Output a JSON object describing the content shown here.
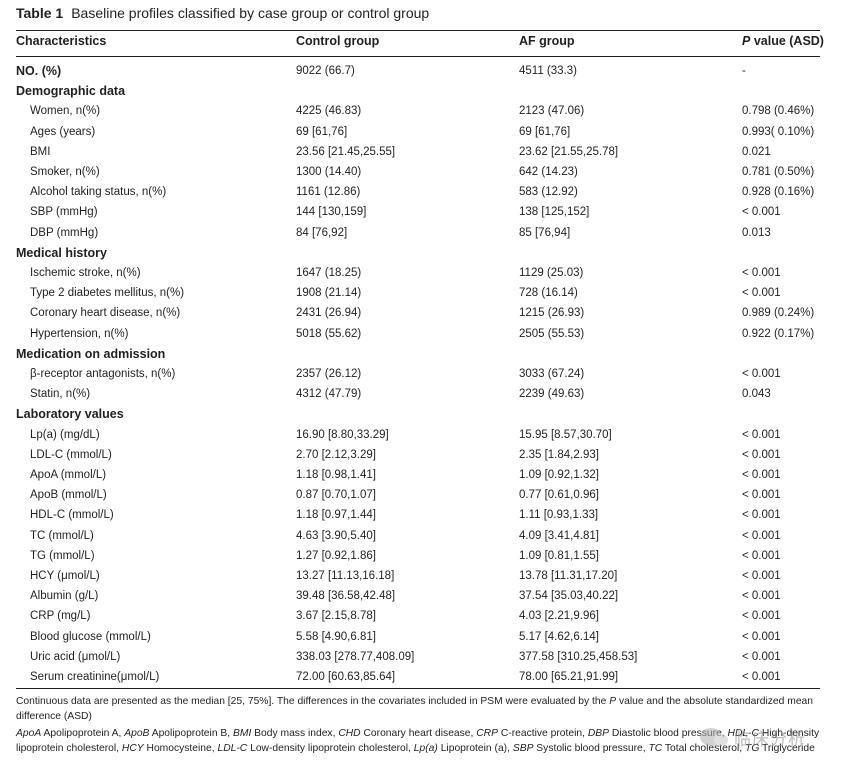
{
  "caption": {
    "label": "Table 1",
    "title": "Baseline profiles classified by case group or control group"
  },
  "columns": {
    "characteristics": "Characteristics",
    "control": "Control group",
    "af": "AF group",
    "p_italic": "P",
    "p_rest": " value (ASD)"
  },
  "rows": [
    {
      "kind": "bold",
      "label": "NO. (%)",
      "control": "9022 (66.7)",
      "af": "4511 (33.3)",
      "p": "-"
    },
    {
      "kind": "section",
      "label": "Demographic data"
    },
    {
      "kind": "data",
      "label": "Women, n(%)",
      "control": "4225 (46.83)",
      "af": "2123 (47.06)",
      "p": "0.798 (0.46%)"
    },
    {
      "kind": "data",
      "label": "Ages (years)",
      "control": "69 [61,76]",
      "af": "69 [61,76]",
      "p": "0.993( 0.10%)"
    },
    {
      "kind": "data",
      "label": "BMI",
      "control": "23.56 [21.45,25.55]",
      "af": "23.62 [21.55,25.78]",
      "p": "0.021"
    },
    {
      "kind": "data",
      "label": "Smoker, n(%)",
      "control": "1300 (14.40)",
      "af": "642 (14.23)",
      "p": "0.781 (0.50%)"
    },
    {
      "kind": "data",
      "label": "Alcohol taking status, n(%)",
      "control": "1161 (12.86)",
      "af": "583 (12.92)",
      "p": "0.928 (0.16%)"
    },
    {
      "kind": "data",
      "label": "SBP (mmHg)",
      "control": "144 [130,159]",
      "af": "138 [125,152]",
      "p": "< 0.001"
    },
    {
      "kind": "data",
      "label": "DBP (mmHg)",
      "control": "84 [76,92]",
      "af": "85 [76,94]",
      "p": "0.013"
    },
    {
      "kind": "section",
      "label": "Medical history"
    },
    {
      "kind": "data",
      "label": "Ischemic stroke, n(%)",
      "control": "1647 (18.25)",
      "af": "1129 (25.03)",
      "p": "< 0.001"
    },
    {
      "kind": "data",
      "label": "Type 2 diabetes mellitus, n(%)",
      "control": "1908 (21.14)",
      "af": "728 (16.14)",
      "p": "< 0.001"
    },
    {
      "kind": "data",
      "label": "Coronary heart disease, n(%)",
      "control": "2431 (26.94)",
      "af": "1215 (26.93)",
      "p": "0.989 (0.24%)"
    },
    {
      "kind": "data",
      "label": "Hypertension, n(%)",
      "control": "5018 (55.62)",
      "af": "2505 (55.53)",
      "p": "0.922 (0.17%)"
    },
    {
      "kind": "section",
      "label": "Medication on admission"
    },
    {
      "kind": "data",
      "label": "β-receptor antagonists, n(%)",
      "control": "2357 (26.12)",
      "af": "3033 (67.24)",
      "p": "< 0.001"
    },
    {
      "kind": "data",
      "label": "Statin, n(%)",
      "control": "4312 (47.79)",
      "af": "2239 (49.63)",
      "p": "0.043"
    },
    {
      "kind": "section",
      "label": "Laboratory values"
    },
    {
      "kind": "data",
      "label": "Lp(a) (mg/dL)",
      "control": "16.90 [8.80,33.29]",
      "af": "15.95 [8.57,30.70]",
      "p": "< 0.001"
    },
    {
      "kind": "data",
      "label": "LDL-C (mmol/L)",
      "control": "2.70 [2.12,3.29]",
      "af": "2.35 [1.84,2.93]",
      "p": "< 0.001"
    },
    {
      "kind": "data",
      "label": "ApoA (mmol/L)",
      "control": "1.18 [0.98,1.41]",
      "af": "1.09 [0.92,1.32]",
      "p": "< 0.001"
    },
    {
      "kind": "data",
      "label": "ApoB (mmol/L)",
      "control": "0.87 [0.70,1.07]",
      "af": "0.77 [0.61,0.96]",
      "p": "< 0.001"
    },
    {
      "kind": "data",
      "label": "HDL-C (mmol/L)",
      "control": "1.18 [0.97,1.44]",
      "af": "1.11 [0.93,1.33]",
      "p": "< 0.001"
    },
    {
      "kind": "data",
      "label": "TC (mmol/L)",
      "control": "4.63 [3.90,5.40]",
      "af": "4.09 [3.41,4.81]",
      "p": "< 0.001"
    },
    {
      "kind": "data",
      "label": "TG (mmol/L)",
      "control": "1.27 [0.92,1.86]",
      "af": "1.09 [0.81,1.55]",
      "p": "< 0.001"
    },
    {
      "kind": "data",
      "label": "HCY (μmol/L)",
      "control": "13.27 [11.13,16.18]",
      "af": "13.78 [11.31,17.20]",
      "p": "< 0.001"
    },
    {
      "kind": "data",
      "label": "Albumin (g/L)",
      "control": "39.48 [36.58,42.48]",
      "af": "37.54 [35.03,40.22]",
      "p": "< 0.001"
    },
    {
      "kind": "data",
      "label": "CRP (mg/L)",
      "control": "3.67 [2.15,8.78]",
      "af": "4.03 [2.21,9.96]",
      "p": "< 0.001"
    },
    {
      "kind": "data",
      "label": "Blood glucose (mmol/L)",
      "control": "5.58 [4.90,6.81]",
      "af": "5.17 [4.62,6.14]",
      "p": "< 0.001"
    },
    {
      "kind": "data",
      "label": "Uric acid (μmol/L)",
      "control": "338.03 [278.77,408.09]",
      "af": "377.58 [310.25,458.53]",
      "p": "< 0.001"
    },
    {
      "kind": "data",
      "label": "Serum creatinine(μmol/L)",
      "control": "72.00 [60.63,85.64]",
      "af": "78.00 [65.21,91.99]",
      "p": "< 0.001"
    }
  ],
  "notes": {
    "continuous_a": "Continuous data are presented as the median [25, 75%]. The differences in the covariates included in PSM were evaluated by the ",
    "continuous_p": "P",
    "continuous_b": " value and the absolute standardized mean difference (ASD)",
    "abbreviations": [
      {
        "abbr": "ApoA",
        "text": " Apolipoprotein A, "
      },
      {
        "abbr": "ApoB",
        "text": " Apolipoprotein B, "
      },
      {
        "abbr": "BMI",
        "text": " Body mass index, "
      },
      {
        "abbr": "CHD",
        "text": " Coronary heart disease, "
      },
      {
        "abbr": "CRP",
        "text": " C-reactive protein, "
      },
      {
        "abbr": "DBP",
        "text": " Diastolic blood pressure, "
      },
      {
        "abbr": "HDL-C",
        "text": " High-density lipoprotein cholesterol, "
      },
      {
        "abbr": "HCY",
        "text": " Homocysteine, "
      },
      {
        "abbr": "LDL-C",
        "text": " Low-density lipoprotein cholesterol, "
      },
      {
        "abbr": "Lp(a)",
        "text": " Lipoprotein (a), "
      },
      {
        "abbr": "SBP",
        "text": " Systolic blood pressure, "
      },
      {
        "abbr": "TC",
        "text": " Total cholesterol, "
      },
      {
        "abbr": "TG",
        "text": " Triglyceride"
      }
    ]
  },
  "watermark": {
    "text": "临床分析"
  }
}
